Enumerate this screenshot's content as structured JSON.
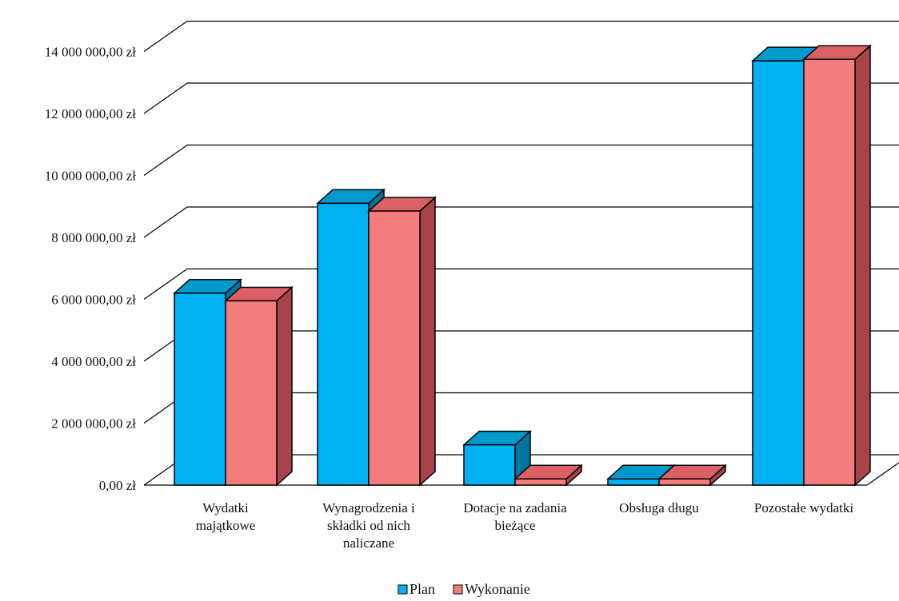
{
  "chart_data": {
    "type": "bar",
    "variant": "3d-clustered-column",
    "categories": [
      [
        "Wydatki",
        "majątkowe"
      ],
      [
        "Wynagrodzenia i",
        "składki od nich",
        "naliczane"
      ],
      [
        "Dotacje na zadania",
        "bieżące"
      ],
      [
        "Obsługa długu"
      ],
      [
        "Pozostałe wydatki"
      ]
    ],
    "series": [
      {
        "name": "Plan",
        "values": [
          6200000,
          9100000,
          1300000,
          200000,
          13700000
        ]
      },
      {
        "name": "Wykonanie",
        "values": [
          5950000,
          8850000,
          200000,
          200000,
          13750000
        ]
      }
    ],
    "yticks": [
      "0,00 zł",
      "2 000 000,00 zł",
      "4 000 000,00 zł",
      "6 000 000,00 zł",
      "8 000 000,00 zł",
      "10 000 000,00 zł",
      "12 000 000,00 zł",
      "14 000 000,00 zł"
    ],
    "ylim": [
      0,
      14000000
    ],
    "grid": true,
    "legend_position": "bottom-center",
    "colors": {
      "Plan": {
        "front": "#00b0f0",
        "top": "#0099cc",
        "side": "#00759c"
      },
      "Wykonanie": {
        "front": "#f47c7c",
        "top": "#dc5f63",
        "side": "#a8434a"
      },
      "grid": "#000000",
      "floor": "#000000"
    }
  }
}
